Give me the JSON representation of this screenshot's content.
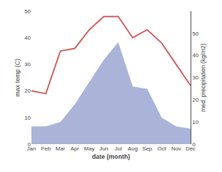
{
  "chart_data": {
    "type": "line",
    "categories": [
      "Jan",
      "Feb",
      "Mar",
      "Apr",
      "May",
      "Jun",
      "Jul",
      "Aug",
      "Sep",
      "Oct",
      "Nov",
      "Dec"
    ],
    "xlabel": "date (month)",
    "ylabel": "max temp (C)",
    "y2label": "med. precipitation (kg/m2)",
    "series": [
      {
        "type": "area",
        "axis": "y2",
        "color": "#aab4d8",
        "values": [
          8,
          8,
          10,
          18,
          28,
          38,
          46,
          26,
          25,
          12,
          8,
          7
        ]
      },
      {
        "type": "line",
        "color": "#cd5c5c",
        "values": [
          20,
          19,
          35,
          36,
          43,
          48,
          48,
          40,
          43,
          38,
          30,
          22
        ]
      }
    ],
    "ylim": [
      0,
      50
    ],
    "yticks": [
      0,
      10,
      20,
      30,
      40,
      50
    ],
    "y2lim": [
      0,
      60
    ],
    "y2ticks": [
      0,
      10,
      20,
      30,
      40,
      50
    ],
    "grid": false
  }
}
